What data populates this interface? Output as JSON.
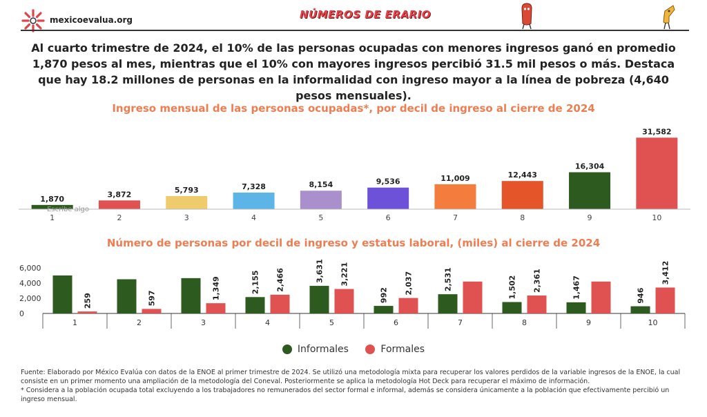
{
  "header": {
    "site_name": "mexicoevalua.org",
    "banner": "NÚMEROS DE ERARIO",
    "brand_color": "#e0434a"
  },
  "intro_text": "Al cuarto trimestre de 2024, el 10% de las personas ocupadas con menores ingresos ganó en promedio 1,870 pesos al mes, mientras que el 10% con mayores ingresos percibió 31.5 mil pesos o más. Destaca que hay 18.2 millones de personas en la informalidad con ingreso mayor a la línea de pobreza (4,640 pesos mensuales).",
  "chart_data": [
    {
      "type": "bar",
      "title": "Ingreso mensual de las personas ocupadas*, por decil de ingreso al cierre de 2024",
      "categories": [
        "1",
        "2",
        "3",
        "4",
        "5",
        "6",
        "7",
        "8",
        "9",
        "10"
      ],
      "values": [
        1870,
        3872,
        5793,
        7328,
        8154,
        9536,
        11009,
        12443,
        16304,
        31582
      ],
      "value_labels": [
        "1,870",
        "3,872",
        "5,793",
        "7,328",
        "8,154",
        "9,536",
        "11,009",
        "12,443",
        "16,304",
        "31,582"
      ],
      "colors": [
        "#2d5a1e",
        "#e05252",
        "#eecb6b",
        "#5db4e6",
        "#a98fcc",
        "#6d52d9",
        "#f47c3c",
        "#e4552a",
        "#2d5a1e",
        "#e05252"
      ],
      "annotation": "Escribe algo",
      "ylim": [
        0,
        32000
      ]
    },
    {
      "type": "bar",
      "title": "Número de personas por decil de ingreso y estatus laboral, (miles) al cierre de 2024",
      "categories": [
        "1",
        "2",
        "3",
        "4",
        "5",
        "6",
        "7",
        "8",
        "9",
        "10"
      ],
      "yticks": [
        "6,000",
        "4,000",
        "2,000",
        "0"
      ],
      "ylim": [
        0,
        6000
      ],
      "series": [
        {
          "name": "Informales",
          "color": "#2d5a1e",
          "values": [
            5000,
            4500,
            4650,
            2155,
            3631,
            992,
            2531,
            1502,
            1467,
            946
          ],
          "labels": [
            "",
            "",
            "",
            "2,155",
            "3,631",
            "992",
            "2,531",
            "1,502",
            "1,467",
            "946"
          ]
        },
        {
          "name": "Formales",
          "color": "#e05252",
          "values": [
            259,
            597,
            1349,
            2466,
            3221,
            2037,
            4200,
            2361,
            4200,
            3412
          ],
          "labels": [
            "259",
            "597",
            "1,349",
            "2,466",
            "3,221",
            "2,037",
            "",
            "2,361",
            "",
            "3,412"
          ]
        }
      ]
    }
  ],
  "footnote": {
    "source": "Fuente: Elaborado por México Evalúa con datos de la ENOE al primer trimestre de 2024. Se utilizó una metodología mixta para recuperar los valores perdidos de la variable ingresos de la ENOE, la cual consiste en un primer momento una ampliación de la metodología del Coneval. Posteriormente se aplica la metodología Hot Deck para recuperar el máximo de información.",
    "note": "* Considera a la población ocupada total excluyendo a los trabajadores no remunerados del sector formal e informal, además se considera únicamente a la población que efectivamente percibió un ingreso mensual."
  }
}
